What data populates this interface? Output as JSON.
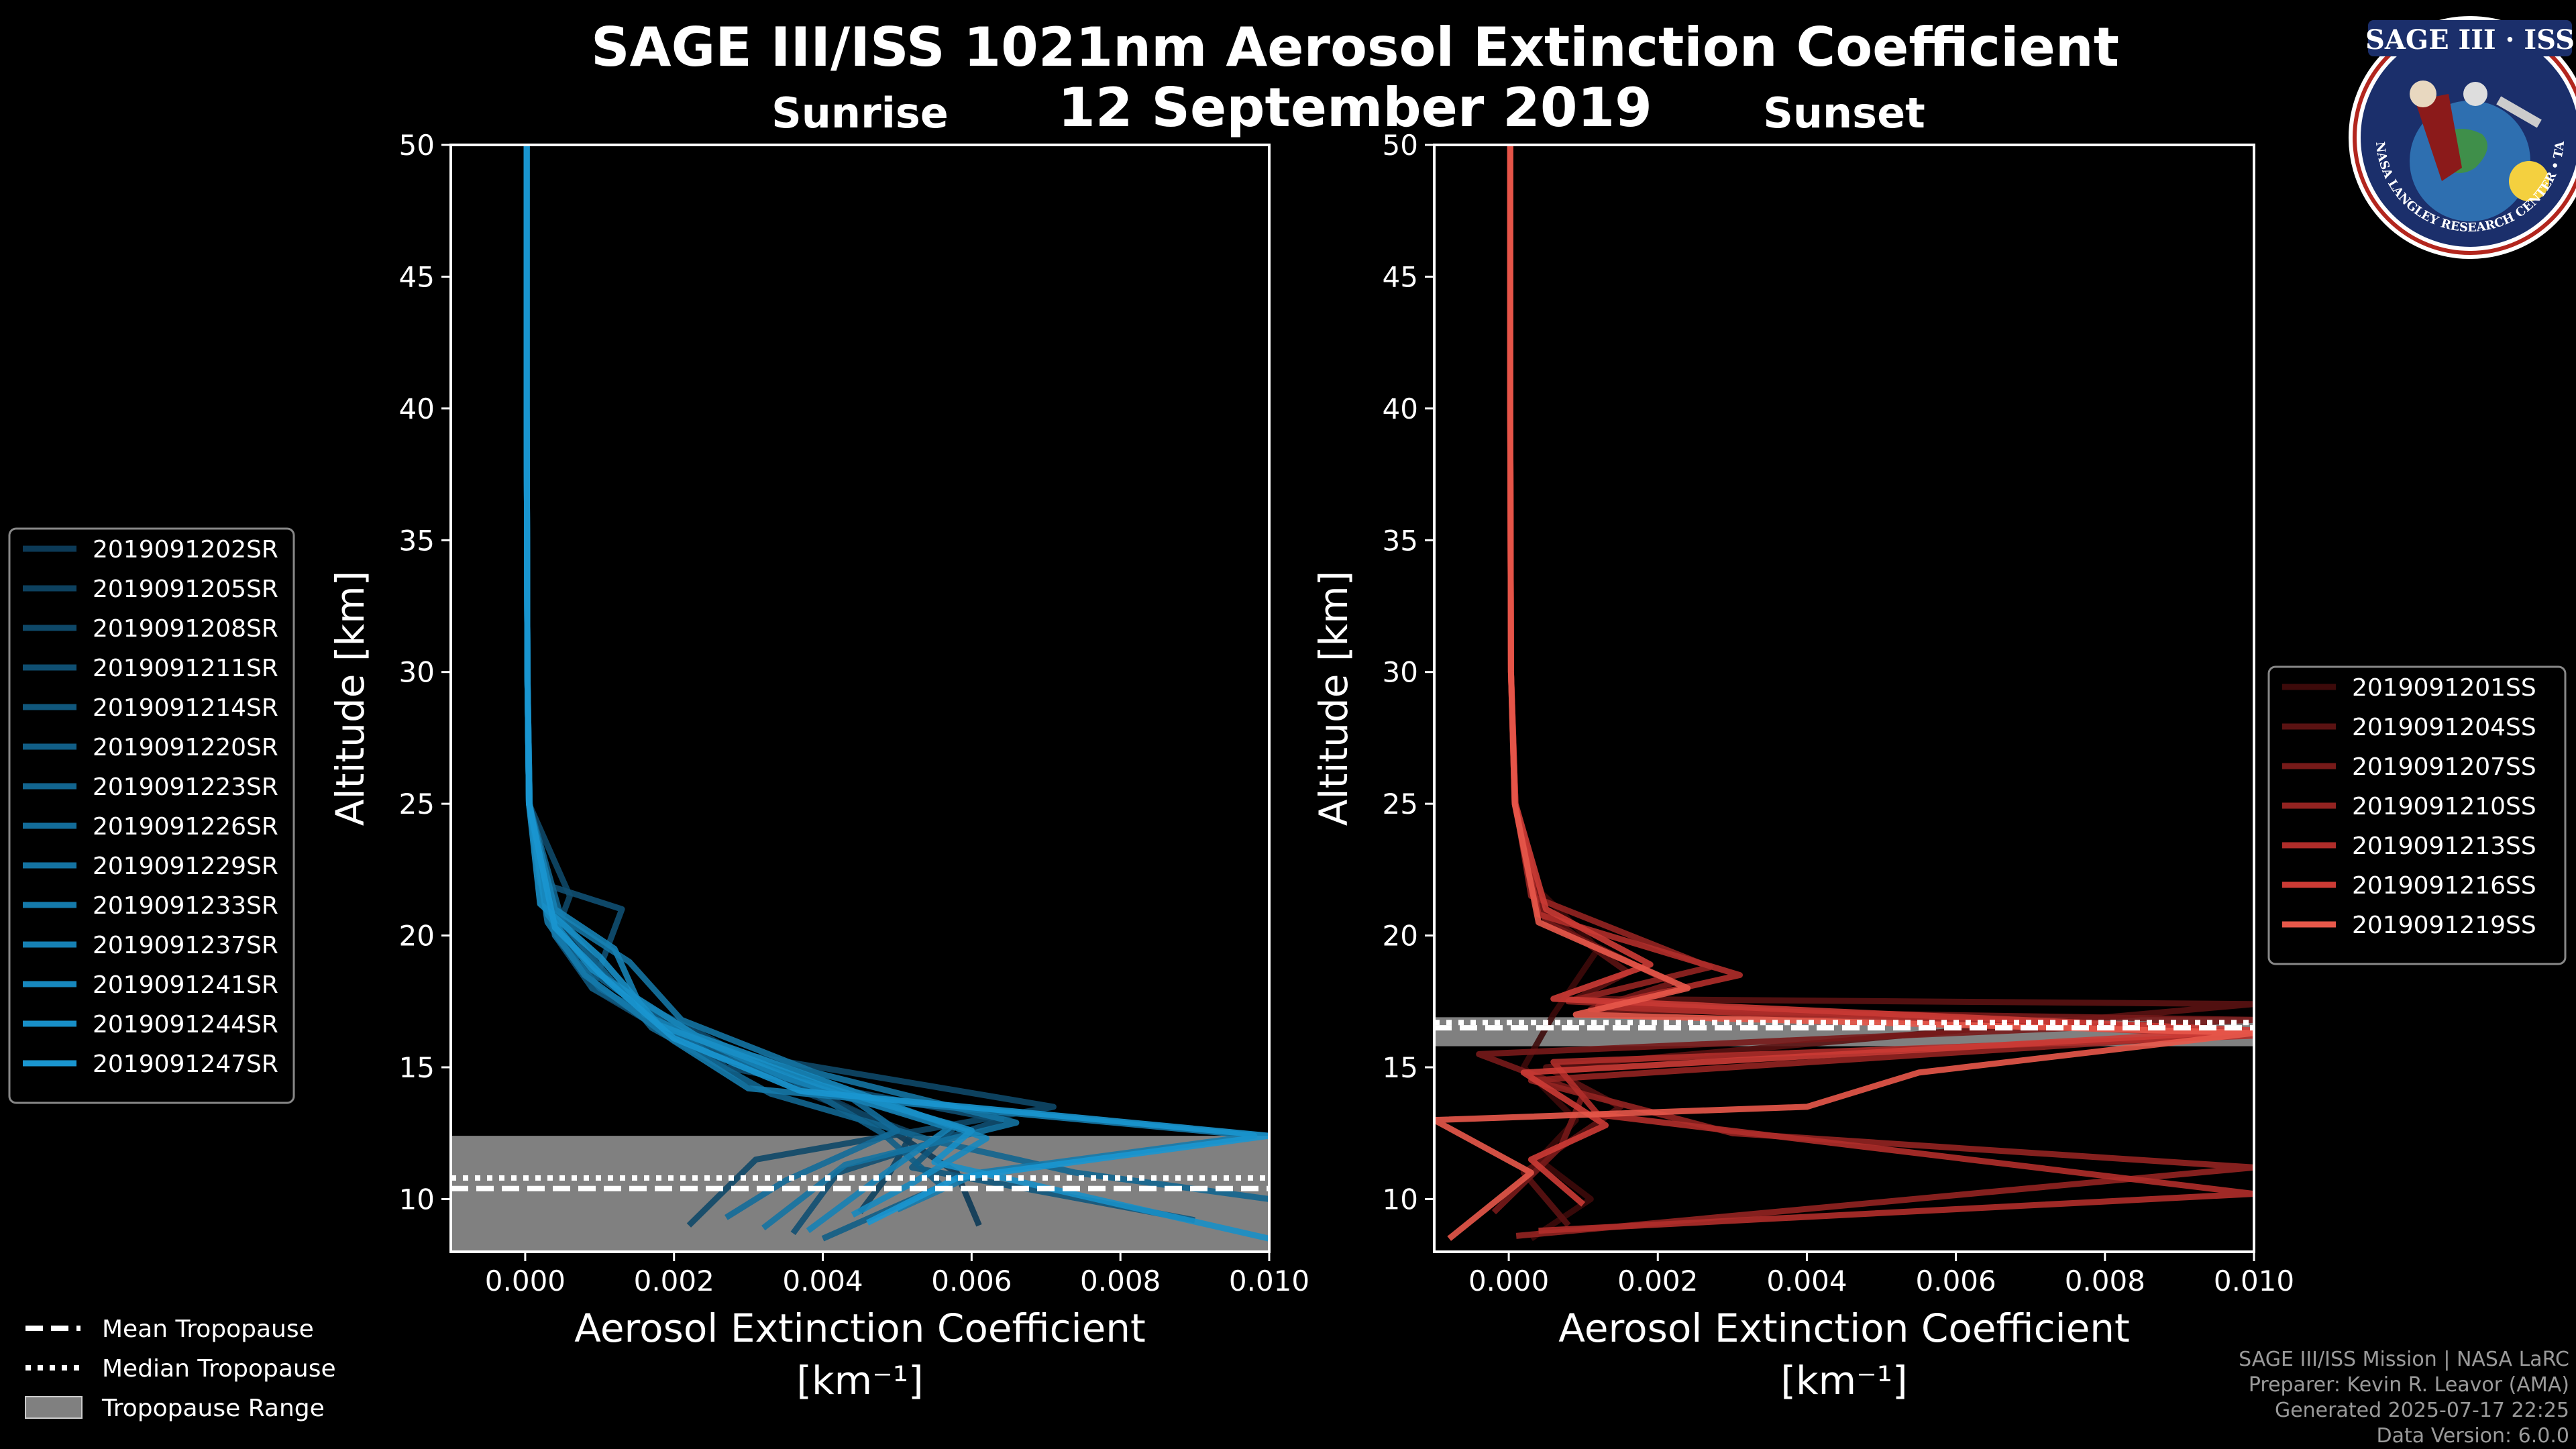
{
  "title_line1": "SAGE III/ISS 1021nm Aerosol Extinction Coefficient",
  "title_line2": "12 September 2019",
  "badge": {
    "name": "SAGE III · ISS",
    "ring_text": "BALL • NASA LANGLEY RESEARCH CENTER • TAS • ESA"
  },
  "footer": {
    "line1": "SAGE III/ISS Mission | NASA LaRC",
    "line2": "Preparer: Kevin R. Leavor (AMA)",
    "line3": "Generated 2025-07-17 22:25",
    "line4": "Data Version: 6.0.0"
  },
  "tropopause_legend": {
    "mean": "Mean Tropopause",
    "median": "Median Tropopause",
    "range": "Tropopause Range"
  },
  "colors": {
    "sunrise": "#1f8dd0",
    "sunset": "#e8584a",
    "trop_range": "#808080"
  },
  "chart_data": [
    {
      "type": "line",
      "panel": "sunrise",
      "title": "Sunrise",
      "xlabel": "Aerosol Extinction Coefficient",
      "xunit": "[km⁻¹]",
      "ylabel": "Altitude [km]",
      "xlim": [
        -0.001,
        0.01
      ],
      "ylim": [
        8,
        50
      ],
      "xticks": [
        0.0,
        0.002,
        0.004,
        0.006,
        0.008,
        0.01
      ],
      "xtick_labels": [
        "0.000",
        "0.002",
        "0.004",
        "0.006",
        "0.008",
        "0.010"
      ],
      "yticks": [
        10,
        15,
        20,
        25,
        30,
        35,
        40,
        45,
        50
      ],
      "tropopause": {
        "mean": 10.4,
        "median": 10.8,
        "range": [
          8.0,
          12.4
        ]
      },
      "series": [
        {
          "name": "2019091202SR",
          "color": "#0c3a57",
          "x": [
            2e-05,
            2e-05,
            3e-05,
            5e-05,
            0.0002,
            0.0008,
            0.0018,
            0.0032,
            0.0047,
            0.0058,
            0.0061
          ],
          "y": [
            50,
            40,
            30,
            25,
            22,
            19,
            17,
            15,
            13,
            11,
            9
          ]
        },
        {
          "name": "2019091205SR",
          "color": "#0d415f",
          "x": [
            2e-05,
            2e-05,
            3e-05,
            6e-05,
            0.0003,
            0.0012,
            0.0024,
            0.0038,
            0.0052,
            0.0049,
            0.0045
          ],
          "y": [
            50,
            40,
            30,
            25,
            21,
            18,
            16,
            14,
            12.5,
            11,
            9.5
          ]
        },
        {
          "name": "2019091208SR",
          "color": "#0e4868",
          "x": [
            2e-05,
            2e-05,
            3e-05,
            5e-05,
            0.0006,
            0.0004,
            0.0015,
            0.0029,
            0.0071,
            0.0031,
            0.0022
          ],
          "y": [
            50,
            40,
            30,
            25,
            21.5,
            20,
            17.5,
            15.5,
            13.5,
            11.5,
            9
          ]
        },
        {
          "name": "2019091211SR",
          "color": "#0f4f72",
          "x": [
            2e-05,
            2e-05,
            3e-05,
            6e-05,
            0.0002,
            0.0013,
            0.0009,
            0.0027,
            0.0064,
            0.0042,
            0.0036
          ],
          "y": [
            50,
            40,
            30,
            25,
            22,
            21,
            18,
            15,
            13,
            11,
            8.7
          ]
        },
        {
          "name": "2019091214SR",
          "color": "#10577c",
          "x": [
            2e-05,
            2e-05,
            3e-05,
            5e-05,
            0.0004,
            0.0009,
            0.0019,
            0.0041,
            0.0058,
            0.0052,
            0.009
          ],
          "y": [
            50,
            40,
            30,
            25,
            20,
            18,
            16.5,
            14,
            12.8,
            11.2,
            9.2
          ]
        },
        {
          "name": "2019091220SR",
          "color": "#115e86",
          "x": [
            2e-05,
            2e-05,
            3e-05,
            5e-05,
            0.0003,
            0.0007,
            0.0022,
            0.0036,
            0.0048,
            0.0056,
            0.004
          ],
          "y": [
            50,
            40,
            30,
            25,
            21,
            19,
            16,
            14.5,
            12.5,
            10.5,
            8.5
          ]
        },
        {
          "name": "2019091223SR",
          "color": "#12658f",
          "x": [
            2e-05,
            2e-05,
            3e-05,
            5e-05,
            0.0005,
            0.0011,
            0.0017,
            0.0033,
            0.0055,
            0.0074,
            0.01
          ],
          "y": [
            50,
            40,
            30,
            25,
            20.5,
            18.5,
            16.5,
            14,
            12.2,
            11,
            10
          ]
        },
        {
          "name": "2019091226SR",
          "color": "#136c99",
          "x": [
            2e-05,
            2e-05,
            3e-05,
            5e-05,
            0.0004,
            0.001,
            0.0025,
            0.0044,
            0.005,
            0.0035,
            0.0027
          ],
          "y": [
            50,
            40,
            30,
            25,
            20,
            18,
            15.5,
            13.8,
            12.6,
            10.7,
            9.3
          ]
        },
        {
          "name": "2019091229SR",
          "color": "#1473a2",
          "x": [
            2e-05,
            2e-05,
            3e-05,
            6e-05,
            0.0003,
            0.0014,
            0.0021,
            0.0039,
            0.0066,
            0.0043,
            0.0032
          ],
          "y": [
            50,
            40,
            30,
            25,
            21,
            19,
            16.8,
            14.8,
            12.9,
            11.3,
            8.9
          ]
        },
        {
          "name": "2019091233SR",
          "color": "#157aab",
          "x": [
            2e-05,
            2e-05,
            3e-05,
            5e-05,
            0.0003,
            0.0008,
            0.002,
            0.003,
            0.0098,
            0.0061,
            0.005
          ],
          "y": [
            50,
            40,
            30,
            25,
            20.5,
            18.5,
            16,
            14.2,
            12.4,
            11,
            9.6
          ]
        },
        {
          "name": "2019091237SR",
          "color": "#1681b4",
          "x": [
            2e-05,
            2e-05,
            3e-05,
            5e-05,
            0.0004,
            0.0012,
            0.0016,
            0.0035,
            0.0057,
            0.0048,
            0.0038
          ],
          "y": [
            50,
            40,
            30,
            25,
            21,
            19.5,
            17,
            14.6,
            12.7,
            10.9,
            8.8
          ]
        },
        {
          "name": "2019091241SR",
          "color": "#1788be",
          "x": [
            2e-05,
            2e-05,
            3e-05,
            6e-05,
            0.0003,
            0.0009,
            0.0023,
            0.0046,
            0.0062,
            0.0052,
            0.0044
          ],
          "y": [
            50,
            40,
            30,
            25,
            20.8,
            18.7,
            16.2,
            13.9,
            12.3,
            10.6,
            9.4
          ]
        },
        {
          "name": "2019091244SR",
          "color": "#188fc7",
          "x": [
            2e-05,
            2e-05,
            3e-05,
            5e-05,
            0.0002,
            0.001,
            0.0018,
            0.004,
            0.006,
            0.0055,
            0.01
          ],
          "y": [
            50,
            40,
            30,
            25,
            21.2,
            19.2,
            16.6,
            14.3,
            12.6,
            11.4,
            8.5
          ]
        },
        {
          "name": "2019091247SR",
          "color": "#1a96d0",
          "x": [
            2e-05,
            2e-05,
            3e-05,
            5e-05,
            0.0004,
            0.0011,
            0.002,
            0.0037,
            0.01,
            0.0058,
            0.0046
          ],
          "y": [
            50,
            40,
            30,
            25,
            20.3,
            18.3,
            16.1,
            14.1,
            12.4,
            10.8,
            9.1
          ]
        }
      ]
    },
    {
      "type": "line",
      "panel": "sunset",
      "title": "Sunset",
      "xlabel": "Aerosol Extinction Coefficient",
      "xunit": "[km⁻¹]",
      "ylabel": "Altitude [km]",
      "xlim": [
        -0.001,
        0.01
      ],
      "ylim": [
        8,
        50
      ],
      "xticks": [
        0.0,
        0.002,
        0.004,
        0.006,
        0.008,
        0.01
      ],
      "xtick_labels": [
        "0.000",
        "0.002",
        "0.004",
        "0.006",
        "0.008",
        "0.010"
      ],
      "yticks": [
        10,
        15,
        20,
        25,
        30,
        35,
        40,
        45,
        50
      ],
      "tropopause": {
        "mean": 16.5,
        "median": 16.7,
        "range": [
          15.8,
          16.9
        ]
      },
      "series": [
        {
          "name": "2019091201SS",
          "color": "#3d0a0a",
          "x": [
            2e-05,
            2e-05,
            3e-05,
            8e-05,
            0.0003,
            0.0012,
            0.0006,
            0.0002,
            0.0009,
            0.0004,
            0.0011,
            0.0003
          ],
          "y": [
            50,
            40,
            30,
            25,
            22,
            19.5,
            17,
            15,
            13,
            11.5,
            10,
            8.5
          ]
        },
        {
          "name": "2019091204SS",
          "color": "#5a1212",
          "x": [
            2e-05,
            2e-05,
            3e-05,
            9e-05,
            0.0004,
            0.0016,
            0.0009,
            0.01,
            0.0005,
            0.0015,
            0.0002,
            0.0008
          ],
          "y": [
            50,
            40,
            30,
            25,
            21,
            18.6,
            17.6,
            17.4,
            15,
            13.5,
            11,
            9
          ]
        },
        {
          "name": "2019091207SS",
          "color": "#771a19",
          "x": [
            2e-05,
            2e-05,
            3e-05,
            8e-05,
            0.0005,
            0.0022,
            0.0011,
            0.01,
            -0.0004,
            0.001,
            0.0007,
            -0.0002
          ],
          "y": [
            50,
            40,
            30,
            25,
            20.5,
            18.2,
            17.2,
            16.8,
            15.5,
            14,
            12,
            9.5
          ]
        },
        {
          "name": "2019091210SS",
          "color": "#932321",
          "x": [
            2e-05,
            2e-05,
            3e-05,
            9e-05,
            0.0003,
            0.0027,
            0.0008,
            0.01,
            0.0003,
            0.003,
            0.01,
            0.0001
          ],
          "y": [
            50,
            40,
            30,
            25,
            21.5,
            18.8,
            17.5,
            16.3,
            14.5,
            12.5,
            11.2,
            8.6
          ]
        },
        {
          "name": "2019091213SS",
          "color": "#b02d2a",
          "x": [
            2e-05,
            2e-05,
            3e-05,
            8e-05,
            0.0004,
            0.0031,
            0.0012,
            0.01,
            0.0006,
            0.0012,
            0.01,
            0.0004
          ],
          "y": [
            50,
            40,
            30,
            25,
            20.8,
            18.5,
            17.3,
            16.2,
            15.2,
            13.2,
            10.2,
            8.8
          ]
        },
        {
          "name": "2019091216SS",
          "color": "#cc3b35",
          "x": [
            2e-05,
            2e-05,
            3e-05,
            9e-05,
            0.0005,
            0.0019,
            0.0006,
            0.01,
            0.0002,
            0.0013,
            0.0003,
            0.001
          ],
          "y": [
            50,
            40,
            30,
            25,
            21,
            18.9,
            17.6,
            16.4,
            14.8,
            12.8,
            11.5,
            9.8
          ]
        },
        {
          "name": "2019091219SS",
          "color": "#e8584a",
          "x": [
            2e-05,
            2e-05,
            3e-05,
            8e-05,
            0.0004,
            0.0024,
            0.0009,
            0.01,
            0.0055,
            0.004,
            -0.001,
            0.0003,
            -0.0008
          ],
          "y": [
            50,
            40,
            30,
            25,
            20.5,
            18,
            17,
            16.3,
            14.8,
            13.5,
            13,
            11,
            8.5
          ]
        }
      ]
    }
  ]
}
